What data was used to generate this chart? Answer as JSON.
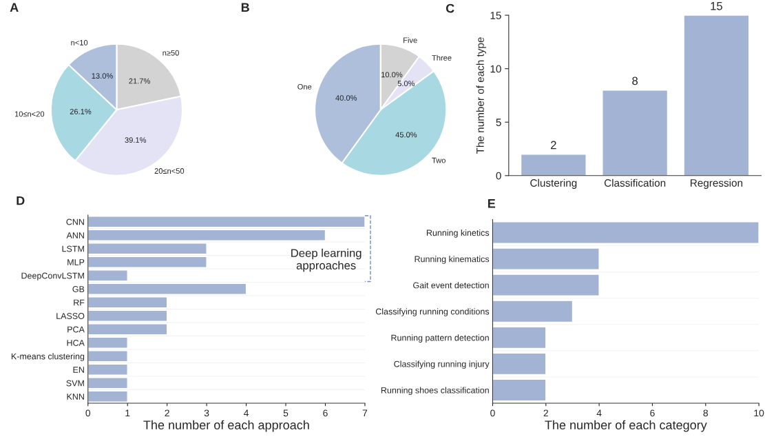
{
  "chart_data": [
    {
      "type": "pie",
      "title": "A",
      "categories": [
        "n≥50",
        "20≤n<50",
        "10≤n<20",
        "n<10"
      ],
      "values": [
        21.7,
        39.1,
        26.1,
        13.0
      ],
      "colors": [
        "#d3d3d3",
        "#e3e3f5",
        "#a8d8e2",
        "#aebfdc"
      ],
      "value_labels": [
        "21.7%",
        "39.1%",
        "26.1%",
        "13.0%"
      ]
    },
    {
      "type": "pie",
      "title": "B",
      "categories": [
        "Five",
        "Three",
        "Two",
        "One"
      ],
      "values": [
        10.0,
        5.0,
        45.0,
        40.0
      ],
      "colors": [
        "#d3d3d3",
        "#e3e3f5",
        "#a8d8e2",
        "#aebfdc"
      ],
      "value_labels": [
        "10.0%",
        "5.0%",
        "45.0%",
        "40.0%"
      ]
    },
    {
      "type": "bar",
      "title": "C",
      "ylabel": "The number of each type",
      "categories": [
        "Clustering",
        "Classification",
        "Regression"
      ],
      "values": [
        2,
        8,
        15
      ],
      "color": "#a3b3d3",
      "ylim": [
        0,
        15
      ],
      "yticks": [
        0,
        5,
        10,
        15
      ],
      "data_labels": true
    },
    {
      "type": "bar",
      "orientation": "horizontal",
      "title": "D",
      "xlabel": "The number of each approach",
      "categories": [
        "CNN",
        "ANN",
        "LSTM",
        "MLP",
        "DeepConvLSTM",
        "GB",
        "RF",
        "LASSO",
        "PCA",
        "HCA",
        "K-means clustering",
        "EN",
        "SVM",
        "KNN"
      ],
      "values": [
        7,
        6,
        3,
        3,
        1,
        4,
        2,
        2,
        2,
        1,
        1,
        1,
        1,
        1
      ],
      "color": "#a3b3d3",
      "xlim": [
        0,
        7
      ],
      "xticks": [
        0,
        1,
        2,
        3,
        4,
        5,
        6,
        7
      ],
      "annotations": [
        "Deep learning\napproaches"
      ]
    },
    {
      "type": "bar",
      "orientation": "horizontal",
      "title": "E",
      "xlabel": "The number of each category",
      "categories": [
        "Running kinetics",
        "Running kinematics",
        "Gait event detection",
        "Classifying running conditions",
        "Running pattern detection",
        "Classifying running injury",
        "Running shoes classification"
      ],
      "values": [
        10,
        4,
        4,
        3,
        2,
        2,
        2
      ],
      "color": "#a3b3d3",
      "xlim": [
        0,
        10
      ],
      "xticks": [
        0,
        2,
        4,
        6,
        8,
        10
      ]
    }
  ]
}
